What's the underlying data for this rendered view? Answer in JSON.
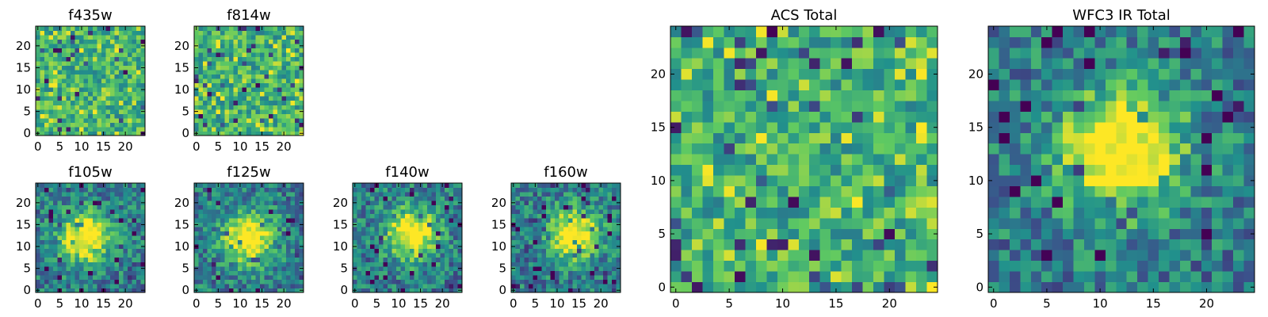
{
  "figure_style": {
    "colormap": "viridis",
    "colormap_stops": [
      "#440154",
      "#3b528b",
      "#21918c",
      "#5ec962",
      "#fde725"
    ],
    "frame_color": "#000000",
    "background": "#ffffff"
  },
  "chart_data": [
    {
      "type": "heatmap",
      "title": "f435w",
      "grid_size": 25,
      "xlim": [
        -0.5,
        24.5
      ],
      "ylim": [
        -0.5,
        24.5
      ],
      "xticks": [
        0,
        5,
        10,
        15,
        20
      ],
      "yticks": [
        0,
        5,
        10,
        15,
        20
      ],
      "xtick_labels": [
        "0",
        "5",
        "10",
        "15",
        "20"
      ],
      "ytick_labels": [
        "0",
        "5",
        "10",
        "15",
        "20"
      ],
      "colormap": "viridis",
      "structure": "uniform noise"
    },
    {
      "type": "heatmap",
      "title": "f814w",
      "grid_size": 25,
      "xlim": [
        -0.5,
        24.5
      ],
      "ylim": [
        -0.5,
        24.5
      ],
      "xticks": [
        0,
        5,
        10,
        15,
        20
      ],
      "yticks": [
        0,
        5,
        10,
        15,
        20
      ],
      "xtick_labels": [
        "0",
        "5",
        "10",
        "15",
        "20"
      ],
      "ytick_labels": [
        "0",
        "5",
        "10",
        "15",
        "20"
      ],
      "colormap": "viridis",
      "structure": "noise, faint central source"
    },
    {
      "type": "heatmap",
      "title": "f105w",
      "grid_size": 25,
      "xlim": [
        -0.5,
        24.5
      ],
      "ylim": [
        -0.5,
        24.5
      ],
      "xticks": [
        0,
        5,
        10,
        15,
        20
      ],
      "yticks": [
        0,
        5,
        10,
        15,
        20
      ],
      "xtick_labels": [
        "0",
        "5",
        "10",
        "15",
        "20"
      ],
      "ytick_labels": [
        "0",
        "5",
        "10",
        "15",
        "20"
      ],
      "colormap": "viridis",
      "structure": "central source",
      "source_center": [
        11,
        12
      ]
    },
    {
      "type": "heatmap",
      "title": "f125w",
      "grid_size": 25,
      "xlim": [
        -0.5,
        24.5
      ],
      "ylim": [
        -0.5,
        24.5
      ],
      "xticks": [
        0,
        5,
        10,
        15,
        20
      ],
      "yticks": [
        0,
        5,
        10,
        15,
        20
      ],
      "xtick_labels": [
        "0",
        "5",
        "10",
        "15",
        "20"
      ],
      "ytick_labels": [
        "0",
        "5",
        "10",
        "15",
        "20"
      ],
      "colormap": "viridis",
      "structure": "central source",
      "source_center": [
        12,
        12
      ]
    },
    {
      "type": "heatmap",
      "title": "f140w",
      "grid_size": 25,
      "xlim": [
        -0.5,
        24.5
      ],
      "ylim": [
        -0.5,
        24.5
      ],
      "xticks": [
        0,
        5,
        10,
        15,
        20
      ],
      "yticks": [
        0,
        5,
        10,
        15,
        20
      ],
      "xtick_labels": [
        "0",
        "5",
        "10",
        "15",
        "20"
      ],
      "ytick_labels": [
        "0",
        "5",
        "10",
        "15",
        "20"
      ],
      "colormap": "viridis",
      "structure": "central source",
      "source_center": [
        13,
        13
      ]
    },
    {
      "type": "heatmap",
      "title": "f160w",
      "grid_size": 25,
      "xlim": [
        -0.5,
        24.5
      ],
      "ylim": [
        -0.5,
        24.5
      ],
      "xticks": [
        0,
        5,
        10,
        15,
        20
      ],
      "yticks": [
        0,
        5,
        10,
        15,
        20
      ],
      "xtick_labels": [
        "0",
        "5",
        "10",
        "15",
        "20"
      ],
      "ytick_labels": [
        "0",
        "5",
        "10",
        "15",
        "20"
      ],
      "colormap": "viridis",
      "structure": "central source",
      "source_center": [
        14,
        13
      ]
    },
    {
      "type": "heatmap",
      "title": "ACS Total",
      "grid_size": 25,
      "xlim": [
        -0.5,
        24.5
      ],
      "ylim": [
        -0.5,
        24.5
      ],
      "xticks": [
        0,
        5,
        10,
        15,
        20
      ],
      "yticks": [
        0,
        5,
        10,
        15,
        20
      ],
      "xtick_labels": [
        "0",
        "5",
        "10",
        "15",
        "20"
      ],
      "ytick_labels": [
        "0",
        "5",
        "10",
        "15",
        "20"
      ],
      "colormap": "viridis",
      "structure": "noise"
    },
    {
      "type": "heatmap",
      "title": "WFC3 IR Total",
      "grid_size": 25,
      "xlim": [
        -0.5,
        24.5
      ],
      "ylim": [
        -0.5,
        24.5
      ],
      "xticks": [
        0,
        5,
        10,
        15,
        20
      ],
      "yticks": [
        0,
        5,
        10,
        15,
        20
      ],
      "xtick_labels": [
        "0",
        "5",
        "10",
        "15",
        "20"
      ],
      "ytick_labels": [
        "0",
        "5",
        "10",
        "15",
        "20"
      ],
      "colormap": "viridis",
      "structure": "bright central source",
      "source_center": [
        12,
        13
      ]
    }
  ]
}
